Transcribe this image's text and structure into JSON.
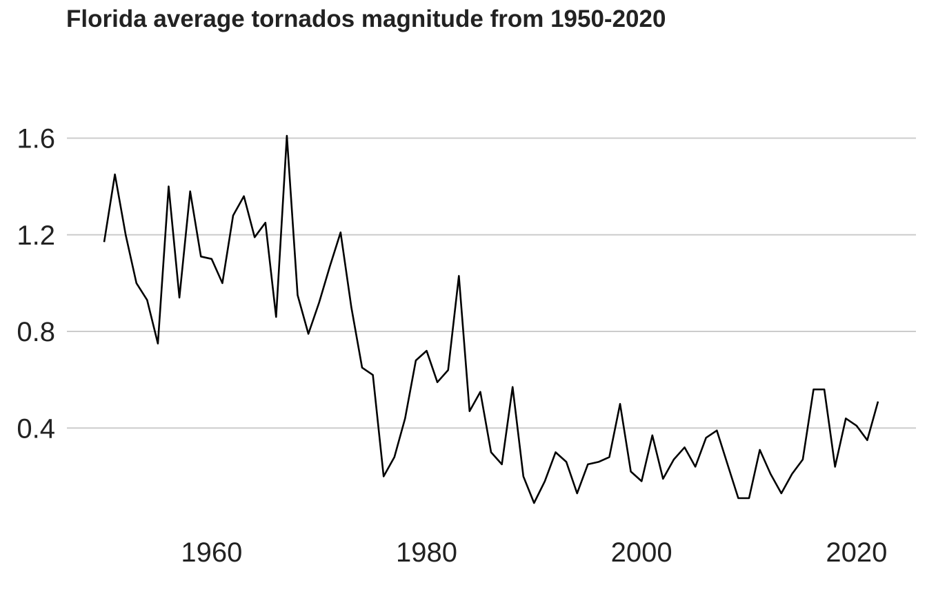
{
  "chart_data": {
    "type": "line",
    "title": "Florida average tornados magnitude from 1950-2020",
    "xlabel": "",
    "ylabel": "",
    "xlim": [
      1950,
      2022
    ],
    "ylim": [
      0.09,
      1.61
    ],
    "x_ticks": [
      1960,
      1980,
      2000,
      2020
    ],
    "y_ticks": [
      0.4,
      0.8,
      1.2,
      1.6
    ],
    "grid": "horizontal",
    "legend": "none",
    "colors": {
      "line": "#000000",
      "grid": "#cccccc",
      "text": "#222222"
    },
    "series": [
      {
        "x": [
          1950,
          1951,
          1952,
          1953,
          1954,
          1955,
          1956,
          1957,
          1958,
          1959,
          1960,
          1961,
          1962,
          1963,
          1964,
          1965,
          1966,
          1967,
          1968,
          1969,
          1970,
          1971,
          1972,
          1973,
          1974,
          1975,
          1976,
          1977,
          1978,
          1979,
          1980,
          1981,
          1982,
          1983,
          1984,
          1985,
          1986,
          1987,
          1988,
          1989,
          1990,
          1991,
          1992,
          1993,
          1994,
          1995,
          1996,
          1997,
          1998,
          1999,
          2000,
          2001,
          2002,
          2003,
          2004,
          2005,
          2006,
          2007,
          2008,
          2009,
          2010,
          2011,
          2012,
          2013,
          2014,
          2015,
          2016,
          2017,
          2018,
          2019,
          2020,
          2021,
          2022
        ],
        "values": [
          1.17,
          1.45,
          1.2,
          1.0,
          0.93,
          0.75,
          1.4,
          0.94,
          1.38,
          1.11,
          1.1,
          1.0,
          1.28,
          1.36,
          1.19,
          1.25,
          0.86,
          1.61,
          0.95,
          0.79,
          0.92,
          1.07,
          1.21,
          0.9,
          0.65,
          0.62,
          0.2,
          0.28,
          0.44,
          0.68,
          0.72,
          0.59,
          0.64,
          1.03,
          0.47,
          0.55,
          0.3,
          0.25,
          0.57,
          0.2,
          0.09,
          0.18,
          0.3,
          0.26,
          0.13,
          0.25,
          0.26,
          0.28,
          0.5,
          0.22,
          0.18,
          0.37,
          0.19,
          0.27,
          0.32,
          0.24,
          0.36,
          0.39,
          0.25,
          0.11,
          0.11,
          0.31,
          0.21,
          0.13,
          0.21,
          0.27,
          0.56,
          0.56,
          0.24,
          0.44,
          0.41,
          0.35,
          0.51
        ]
      }
    ]
  }
}
